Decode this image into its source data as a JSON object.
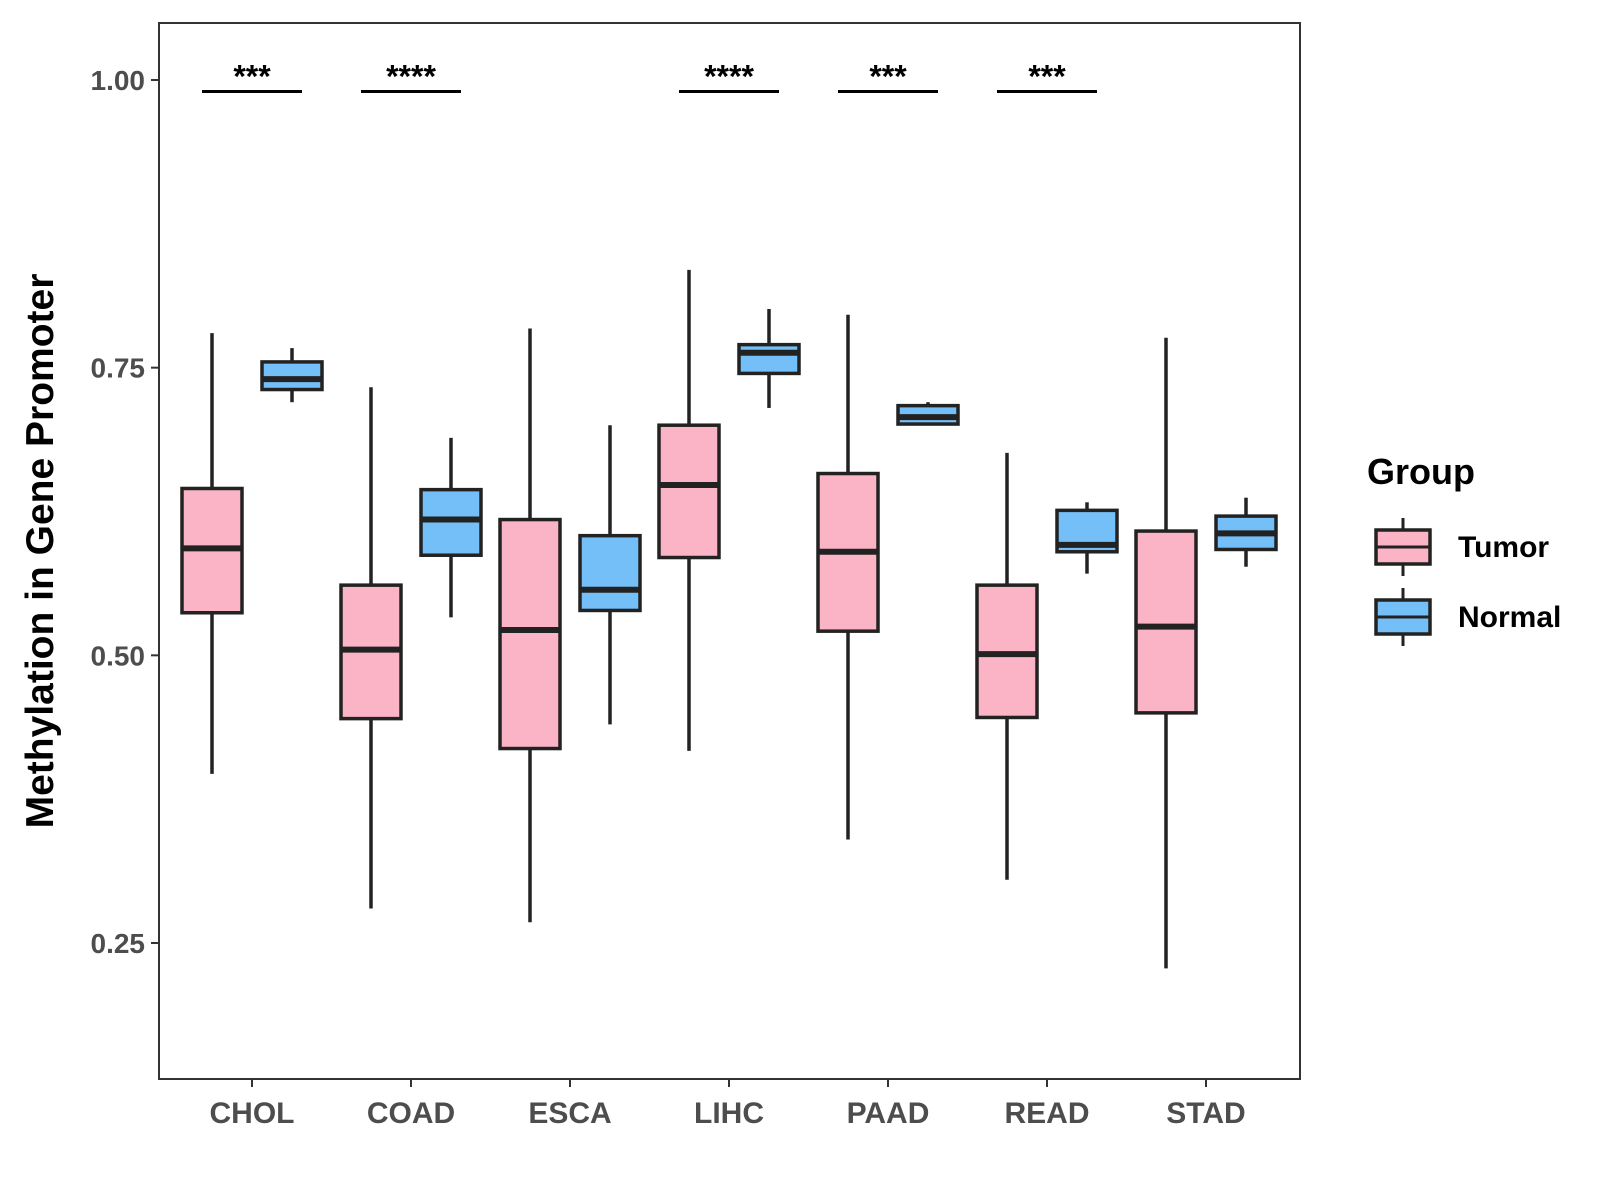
{
  "chart_data": {
    "type": "boxplot",
    "title": "",
    "xlabel": "",
    "ylabel": "Methylation in Gene Promoter",
    "ylim": [
      0.13,
      1.05
    ],
    "yticks": [
      0.25,
      0.5,
      0.75,
      1.0
    ],
    "ytick_labels": [
      "0.25",
      "0.50",
      "0.75",
      "1.00"
    ],
    "grid": false,
    "legend": {
      "title": "Group",
      "position": "right",
      "entries": [
        {
          "name": "Tumor",
          "color": "#FBB4C6"
        },
        {
          "name": "Normal",
          "color": "#74BFF7"
        }
      ]
    },
    "categories": [
      "CHOL",
      "COAD",
      "ESCA",
      "LIHC",
      "PAAD",
      "READ",
      "STAD"
    ],
    "series": [
      {
        "name": "Tumor",
        "color": "#FBB4C6",
        "boxes": [
          {
            "min": 0.397,
            "q1": 0.537,
            "median": 0.593,
            "q3": 0.645,
            "max": 0.78
          },
          {
            "min": 0.28,
            "q1": 0.445,
            "median": 0.505,
            "q3": 0.561,
            "max": 0.733
          },
          {
            "min": 0.268,
            "q1": 0.419,
            "median": 0.522,
            "q3": 0.618,
            "max": 0.784
          },
          {
            "min": 0.417,
            "q1": 0.585,
            "median": 0.648,
            "q3": 0.7,
            "max": 0.835
          },
          {
            "min": 0.34,
            "q1": 0.521,
            "median": 0.59,
            "q3": 0.658,
            "max": 0.796
          },
          {
            "min": 0.305,
            "q1": 0.446,
            "median": 0.501,
            "q3": 0.561,
            "max": 0.676
          },
          {
            "min": 0.228,
            "q1": 0.45,
            "median": 0.525,
            "q3": 0.608,
            "max": 0.776
          }
        ]
      },
      {
        "name": "Normal",
        "color": "#74BFF7",
        "boxes": [
          {
            "min": 0.72,
            "q1": 0.731,
            "median": 0.74,
            "q3": 0.755,
            "max": 0.767
          },
          {
            "min": 0.533,
            "q1": 0.587,
            "median": 0.618,
            "q3": 0.644,
            "max": 0.689
          },
          {
            "min": 0.44,
            "q1": 0.539,
            "median": 0.557,
            "q3": 0.604,
            "max": 0.7
          },
          {
            "min": 0.715,
            "q1": 0.745,
            "median": 0.763,
            "q3": 0.77,
            "max": 0.801
          },
          {
            "min": 0.701,
            "q1": 0.701,
            "median": 0.707,
            "q3": 0.717,
            "max": 0.72
          },
          {
            "min": 0.571,
            "q1": 0.59,
            "median": 0.596,
            "q3": 0.626,
            "max": 0.633
          },
          {
            "min": 0.577,
            "q1": 0.592,
            "median": 0.606,
            "q3": 0.621,
            "max": 0.637
          }
        ]
      }
    ],
    "significance": [
      {
        "category": "CHOL",
        "label": "***"
      },
      {
        "category": "COAD",
        "label": "****"
      },
      {
        "category": "LIHC",
        "label": "****"
      },
      {
        "category": "PAAD",
        "label": "***"
      },
      {
        "category": "READ",
        "label": "***"
      }
    ],
    "significance_y": 0.99
  }
}
